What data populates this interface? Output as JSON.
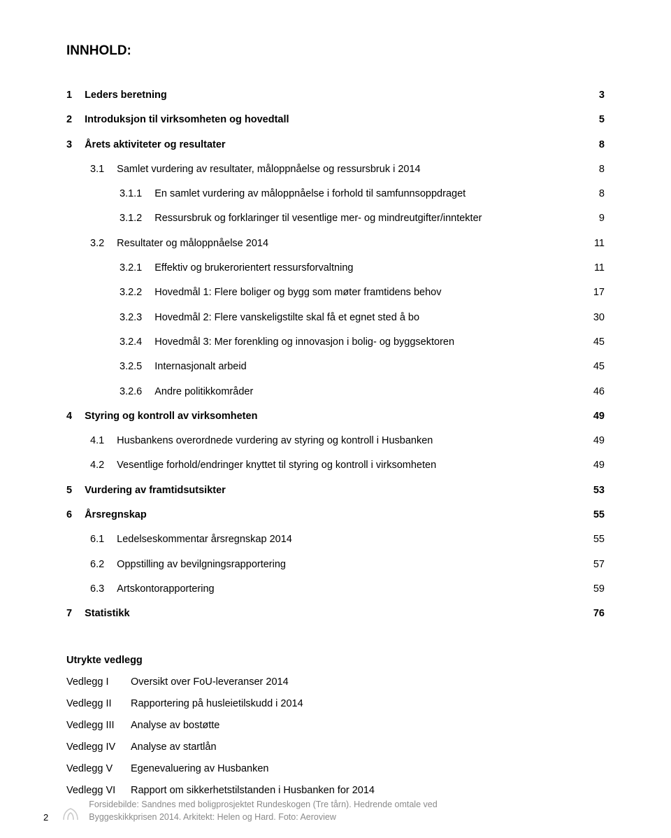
{
  "title": "INNHOLD:",
  "toc": [
    {
      "num": "1",
      "label": "Leders beretning",
      "page": "3",
      "level": 0,
      "bold": true
    },
    {
      "num": "2",
      "label": "Introduksjon til virksomheten og hovedtall",
      "page": "5",
      "level": 0,
      "bold": true
    },
    {
      "num": "3",
      "label": "Årets aktiviteter og resultater",
      "page": "8",
      "level": 0,
      "bold": true
    },
    {
      "num": "3.1",
      "label": "Samlet vurdering av resultater, måloppnåelse og ressursbruk i 2014",
      "page": "8",
      "level": 1,
      "bold": false
    },
    {
      "num": "3.1.1",
      "label": "En samlet vurdering av måloppnåelse i forhold til samfunnsoppdraget",
      "page": "8",
      "level": 2,
      "bold": false
    },
    {
      "num": "3.1.2",
      "label": "Ressursbruk og forklaringer til vesentlige mer- og mindreutgifter/inntekter",
      "page": "9",
      "level": 2,
      "bold": false
    },
    {
      "num": "3.2",
      "label": "Resultater og måloppnåelse 2014",
      "page": "11",
      "level": 1,
      "bold": false
    },
    {
      "num": "3.2.1",
      "label": "Effektiv og brukerorientert ressursforvaltning",
      "page": "11",
      "level": 2,
      "bold": false
    },
    {
      "num": "3.2.2",
      "label": "Hovedmål 1: Flere boliger og bygg som møter framtidens behov",
      "page": "17",
      "level": 2,
      "bold": false
    },
    {
      "num": "3.2.3",
      "label": "Hovedmål 2: Flere vanskeligstilte skal få et egnet sted å bo",
      "page": "30",
      "level": 2,
      "bold": false
    },
    {
      "num": "3.2.4",
      "label": "Hovedmål 3: Mer forenkling og innovasjon i bolig- og byggsektoren",
      "page": "45",
      "level": 2,
      "bold": false
    },
    {
      "num": "3.2.5",
      "label": "Internasjonalt arbeid",
      "page": "45",
      "level": 2,
      "bold": false
    },
    {
      "num": "3.2.6",
      "label": "Andre politikkområder",
      "page": "46",
      "level": 2,
      "bold": false
    },
    {
      "num": "4",
      "label": "Styring og kontroll av virksomheten",
      "page": "49",
      "level": 0,
      "bold": true
    },
    {
      "num": "4.1",
      "label": "Husbankens overordnede vurdering av styring og kontroll i Husbanken",
      "page": "49",
      "level": 1,
      "bold": false
    },
    {
      "num": "4.2",
      "label": "Vesentlige forhold/endringer knyttet til styring og kontroll i virksomheten",
      "page": "49",
      "level": 1,
      "bold": false
    },
    {
      "num": "5",
      "label": "Vurdering av framtidsutsikter",
      "page": "53",
      "level": 0,
      "bold": true
    },
    {
      "num": "6",
      "label": "Årsregnskap",
      "page": "55",
      "level": 0,
      "bold": true
    },
    {
      "num": "6.1",
      "label": "Ledelseskommentar årsregnskap 2014",
      "page": "55",
      "level": 1,
      "bold": false
    },
    {
      "num": "6.2",
      "label": "Oppstilling av bevilgningsrapportering",
      "page": "57",
      "level": 1,
      "bold": false
    },
    {
      "num": "6.3",
      "label": "Artskontorapportering",
      "page": "59",
      "level": 1,
      "bold": false
    },
    {
      "num": "7",
      "label": "Statistikk",
      "page": "76",
      "level": 0,
      "bold": true
    }
  ],
  "vedlegg": {
    "heading": "Utrykte vedlegg",
    "items": [
      {
        "key": "Vedlegg I",
        "val": "Oversikt over FoU-leveranser 2014"
      },
      {
        "key": "Vedlegg II",
        "val": "Rapportering på husleietilskudd i 2014"
      },
      {
        "key": "Vedlegg III",
        "val": "Analyse av bostøtte"
      },
      {
        "key": "Vedlegg IV",
        "val": "Analyse av startlån"
      },
      {
        "key": "Vedlegg V",
        "val": "Egenevaluering av Husbanken"
      },
      {
        "key": "Vedlegg VI",
        "val": "Rapport om sikkerhetstilstanden i Husbanken for 2014"
      }
    ]
  },
  "footer": {
    "page": "2",
    "line1": "Forsidebilde: Sandnes med boligprosjektet Rundeskogen (Tre tårn). Hedrende omtale ved",
    "line2": "Byggeskikkprisen 2014. Arkitekt: Helen og Hard. Foto: Aeroview"
  }
}
